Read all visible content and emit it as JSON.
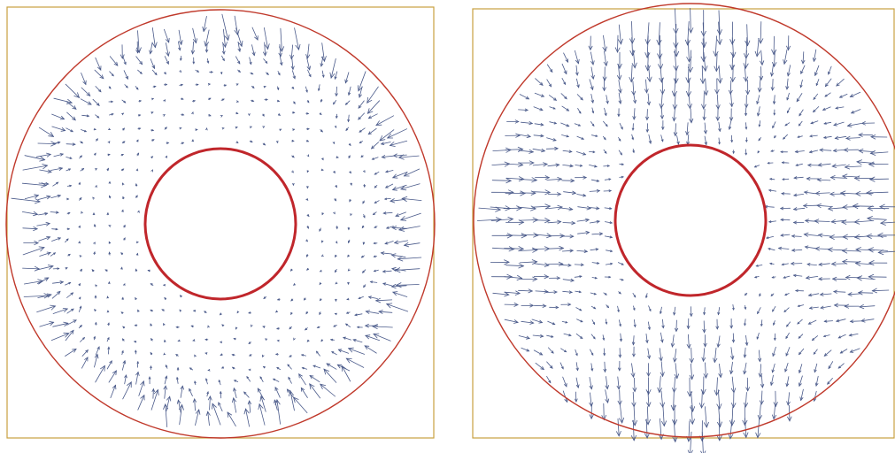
{
  "colors": {
    "frame": "#c8a040",
    "outer_circle": "#c0392b",
    "inner_circle": "#c0262b",
    "arrow": "#4a5a8a",
    "background": "#ffffff"
  },
  "panels": [
    {
      "id": "left",
      "field_pattern": "left",
      "description_name": "flow-field-panel-left"
    },
    {
      "id": "right",
      "field_pattern": "right",
      "description_name": "flow-field-panel-right"
    }
  ]
}
